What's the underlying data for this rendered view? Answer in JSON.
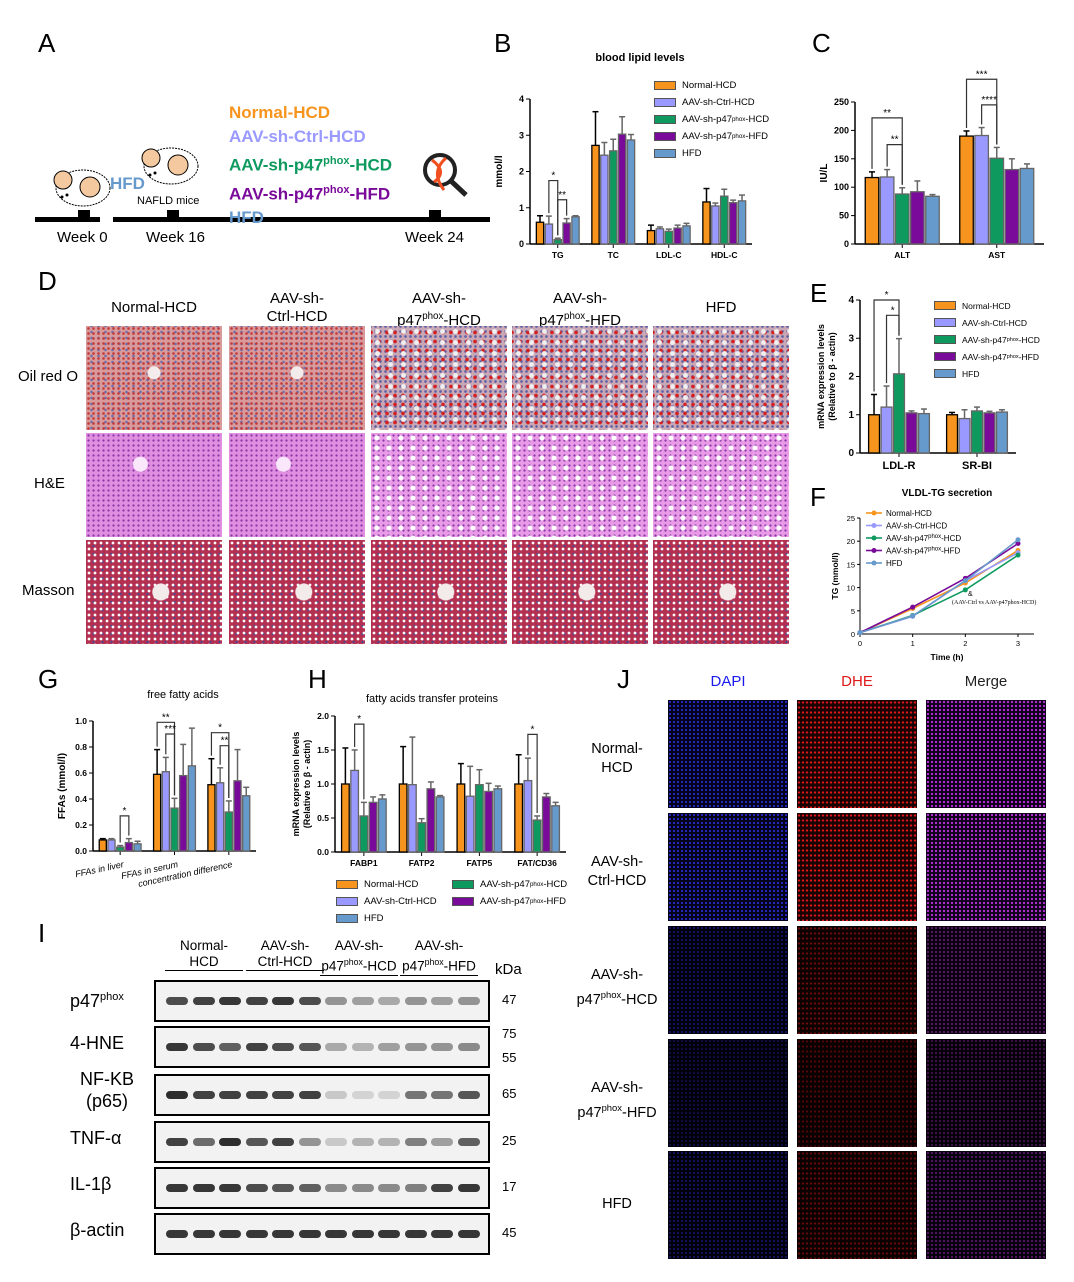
{
  "colors": {
    "normal_hcd": "#F7941D",
    "ctrl_hcd": "#9999FF",
    "p47_hcd": "#0E9A5E",
    "p47_hfd": "#7A0A9A",
    "hfd": "#6699CC"
  },
  "groups": [
    {
      "pre": "Normal-HCD",
      "sup": "",
      "post": ""
    },
    {
      "pre": "AAV-sh-Ctrl-HCD",
      "sup": "",
      "post": ""
    },
    {
      "pre": "AAV-sh-p47",
      "sup": "phox",
      "post": "-HCD"
    },
    {
      "pre": "AAV-sh-p47",
      "sup": "phox",
      "post": "-HFD"
    },
    {
      "pre": "HFD",
      "sup": "",
      "post": ""
    }
  ],
  "panel_labels": {
    "a": "A",
    "b": "B",
    "c": "C",
    "d": "D",
    "e": "E",
    "f": "F",
    "g": "G",
    "h": "H",
    "i": "I",
    "j": "J"
  },
  "panel_a": {
    "hfd_label": "HFD",
    "nafld_label": "NAFLD mice",
    "timeline": [
      "Week 0",
      "Week 16",
      "Week 24"
    ]
  },
  "panel_d": {
    "columns": [
      {
        "l1": "Normal-HCD",
        "l2": ""
      },
      {
        "l1": "AAV-sh-",
        "l2": "Ctrl-HCD"
      },
      {
        "l1": "AAV-sh-",
        "l2": "p47",
        "sup": "phox",
        "post": "-HCD"
      },
      {
        "l1": "AAV-sh-",
        "l2": "p47",
        "sup": "phox",
        "post": "-HFD"
      },
      {
        "l1": "HFD",
        "l2": ""
      }
    ],
    "rows": [
      "Oil red O",
      "H&E",
      "Masson"
    ]
  },
  "panel_i": {
    "groups": [
      {
        "l1": "Normal-",
        "l2": "HCD"
      },
      {
        "l1": "AAV-sh-",
        "l2": "Ctrl-HCD"
      },
      {
        "l1": "AAV-sh-",
        "l2": "p47",
        "sup": "phox",
        "post": "-HCD"
      },
      {
        "l1": "AAV-sh-",
        "l2": "p47",
        "sup": "phox",
        "post": "-HFD"
      }
    ],
    "unit": "kDa",
    "rows": [
      {
        "name": "p47",
        "sup": "phox",
        "kda": "47",
        "intensity": [
          0.8,
          0.85,
          0.9,
          0.85,
          0.9,
          0.8,
          0.45,
          0.4,
          0.35,
          0.45,
          0.4,
          0.45
        ]
      },
      {
        "name": "4-HNE",
        "kda": "75",
        "kda2": "55",
        "intensity": [
          0.9,
          0.8,
          0.7,
          0.85,
          0.8,
          0.75,
          0.35,
          0.3,
          0.4,
          0.45,
          0.45,
          0.5
        ]
      },
      {
        "name": "NF-KB",
        "name2": "(p65)",
        "kda": "65",
        "intensity": [
          0.95,
          0.85,
          0.85,
          0.85,
          0.85,
          0.85,
          0.2,
          0.15,
          0.15,
          0.6,
          0.6,
          0.75
        ]
      },
      {
        "name": "TNF-α",
        "kda": "25",
        "intensity": [
          0.85,
          0.65,
          0.95,
          0.75,
          0.85,
          0.45,
          0.2,
          0.3,
          0.3,
          0.55,
          0.4,
          0.7
        ]
      },
      {
        "name": "IL-1β",
        "kda": "17",
        "intensity": [
          0.9,
          0.9,
          0.9,
          0.8,
          0.75,
          0.7,
          0.5,
          0.5,
          0.5,
          0.55,
          0.85,
          0.9
        ]
      },
      {
        "name": "β-actin",
        "kda": "45",
        "intensity": [
          0.9,
          0.9,
          0.9,
          0.9,
          0.9,
          0.9,
          0.9,
          0.9,
          0.9,
          0.9,
          0.9,
          0.9
        ]
      }
    ]
  },
  "panel_j": {
    "columns": [
      "DAPI",
      "DHE",
      "Merge"
    ],
    "column_colors": [
      "#1a1aee",
      "#e01818",
      "#222222"
    ],
    "rows": [
      {
        "l1": "Normal-",
        "l2": "HCD"
      },
      {
        "l1": "AAV-sh-",
        "l2": "Ctrl-HCD"
      },
      {
        "l1": "AAV-sh-",
        "l2": "p47",
        "sup": "phox",
        "post": "-HCD"
      },
      {
        "l1": "AAV-sh-",
        "l2": "p47",
        "sup": "phox",
        "post": "-HFD"
      },
      {
        "l1": "HFD",
        "l2": ""
      }
    ],
    "intensity": [
      1,
      1,
      0.5,
      0.35,
      0.45
    ]
  },
  "chart_data": [
    {
      "id": "B",
      "type": "bar",
      "title": "blood lipid levels",
      "ylabel": "mmol/l",
      "ylim": [
        0,
        4
      ],
      "yticks": [
        0,
        1,
        2,
        3,
        4
      ],
      "categories": [
        "TG",
        "TC",
        "LDL-C",
        "HDL-C"
      ],
      "series": [
        {
          "name": "Normal-HCD",
          "values": [
            0.6,
            2.72,
            0.37,
            1.16
          ],
          "errors": [
            0.18,
            0.93,
            0.15,
            0.37
          ]
        },
        {
          "name": "AAV-sh-Ctrl-HCD",
          "values": [
            0.55,
            2.45,
            0.42,
            1.05
          ],
          "errors": [
            0.22,
            0.35,
            0.05,
            0.08
          ]
        },
        {
          "name": "AAV-sh-p47phox-HCD",
          "values": [
            0.12,
            2.57,
            0.35,
            1.32
          ],
          "errors": [
            0.04,
            0.32,
            0.06,
            0.19
          ]
        },
        {
          "name": "AAV-sh-p47phox-HFD",
          "values": [
            0.58,
            3.03,
            0.44,
            1.14
          ],
          "errors": [
            0.12,
            0.48,
            0.08,
            0.07
          ]
        },
        {
          "name": "HFD",
          "values": [
            0.75,
            2.87,
            0.5,
            1.19
          ],
          "errors": [
            0.03,
            0.15,
            0.07,
            0.16
          ]
        }
      ],
      "significance": [
        {
          "cat": 0,
          "a": 1,
          "b": 2,
          "y": 1.75,
          "label": "*"
        },
        {
          "cat": 0,
          "a": 2,
          "b": 3,
          "y": 1.22,
          "label": "**"
        }
      ],
      "legend": "top-right"
    },
    {
      "id": "C",
      "type": "bar",
      "title": "",
      "ylabel": "IU/L",
      "ylim": [
        0,
        250
      ],
      "yticks": [
        0,
        50,
        100,
        150,
        200,
        250
      ],
      "categories": [
        "ALT",
        "AST"
      ],
      "series": [
        {
          "name": "Normal-HCD",
          "values": [
            117,
            190
          ],
          "errors": [
            10,
            9
          ]
        },
        {
          "name": "AAV-sh-Ctrl-HCD",
          "values": [
            118,
            191
          ],
          "errors": [
            13,
            14
          ]
        },
        {
          "name": "AAV-sh-p47phox-HCD",
          "values": [
            88,
            151
          ],
          "errors": [
            11,
            19
          ]
        },
        {
          "name": "AAV-sh-p47phox-HFD",
          "values": [
            92,
            131
          ],
          "errors": [
            19,
            19
          ]
        },
        {
          "name": "HFD",
          "values": [
            84,
            133
          ],
          "errors": [
            3,
            8
          ]
        }
      ],
      "significance": [
        {
          "cat": 0,
          "a": 0,
          "b": 2,
          "y": 222,
          "label": "**"
        },
        {
          "cat": 0,
          "a": 1,
          "b": 2,
          "y": 175,
          "label": "**"
        },
        {
          "cat": 1,
          "a": 0,
          "b": 2,
          "y": 290,
          "label": "***"
        },
        {
          "cat": 1,
          "a": 1,
          "b": 2,
          "y": 245,
          "label": "****"
        }
      ]
    },
    {
      "id": "E",
      "type": "bar",
      "title": "",
      "ylabel": "mRNA expression levels",
      "ylabel2": "(Relative to β - actin)",
      "ylim": [
        0,
        4
      ],
      "yticks": [
        0,
        1,
        2,
        3,
        4
      ],
      "categories": [
        "LDL-R",
        "SR-BI"
      ],
      "series": [
        {
          "name": "Normal-HCD",
          "values": [
            1.0,
            1.0
          ],
          "errors": [
            0.53,
            0.06
          ]
        },
        {
          "name": "AAV-sh-Ctrl-HCD",
          "values": [
            1.2,
            0.9
          ],
          "errors": [
            0.55,
            0.23
          ]
        },
        {
          "name": "AAV-sh-p47phox-HCD",
          "values": [
            2.07,
            1.1
          ],
          "errors": [
            0.92,
            0.1
          ]
        },
        {
          "name": "AAV-sh-p47phox-HFD",
          "values": [
            1.05,
            1.05
          ],
          "errors": [
            0.05,
            0.04
          ]
        },
        {
          "name": "HFD",
          "values": [
            1.03,
            1.07
          ],
          "errors": [
            0.12,
            0.06
          ]
        }
      ],
      "significance": [
        {
          "cat": 0,
          "a": 0,
          "b": 2,
          "y": 4.0,
          "label": "*"
        },
        {
          "cat": 0,
          "a": 1,
          "b": 2,
          "y": 3.6,
          "label": "*"
        }
      ],
      "legend": "top-right"
    },
    {
      "id": "F",
      "type": "line",
      "title": "VLDL-TG secretion",
      "xlabel": "Time (h)",
      "ylabel": "TG (mmol/l)",
      "xlim": [
        0,
        3
      ],
      "ylim": [
        0,
        25
      ],
      "xticks": [
        0,
        1,
        2,
        3
      ],
      "yticks": [
        0,
        5,
        10,
        15,
        20,
        25
      ],
      "x": [
        0,
        1,
        2,
        3
      ],
      "series": [
        {
          "name": "Normal-HCD",
          "marker": "square",
          "values": [
            0.3,
            5.5,
            11,
            18
          ]
        },
        {
          "name": "AAV-sh-Ctrl-HCD",
          "marker": "triangle",
          "values": [
            0.3,
            3.8,
            11.5,
            17.5
          ]
        },
        {
          "name": "AAV-sh-p47phox-HCD",
          "marker": "circle",
          "values": [
            0.3,
            4,
            9.5,
            17
          ]
        },
        {
          "name": "AAV-sh-p47phox-HFD",
          "marker": "down-triangle",
          "values": [
            0.3,
            5.8,
            12,
            19.5
          ]
        },
        {
          "name": "HFD",
          "marker": "plus",
          "values": [
            0.3,
            3.9,
            11.5,
            20.3
          ]
        }
      ],
      "annotation": "&",
      "annotation2": "(AAV-Ctrl vs AAV-p47phox-HCD)",
      "legend": "top-left"
    },
    {
      "id": "G",
      "type": "bar",
      "title": "free fatty acids",
      "ylabel": "FFAs (mmol/l)",
      "ylim": [
        0,
        1
      ],
      "yticks": [
        0,
        0.2,
        0.4,
        0.6,
        0.8,
        1.0
      ],
      "categories": [
        "FFAs in liver",
        "FFAs in serum",
        "concentration difference"
      ],
      "series": [
        {
          "name": "Normal-HCD",
          "values": [
            0.085,
            0.59,
            0.51
          ],
          "errors": [
            0.01,
            0.19,
            0.2
          ]
        },
        {
          "name": "AAV-sh-Ctrl-HCD",
          "values": [
            0.085,
            0.61,
            0.525
          ],
          "errors": [
            0.01,
            0.11,
            0.115
          ]
        },
        {
          "name": "AAV-sh-p47phox-HCD",
          "values": [
            0.03,
            0.33,
            0.3
          ],
          "errors": [
            0.012,
            0.075,
            0.085
          ]
        },
        {
          "name": "AAV-sh-p47phox-HFD",
          "values": [
            0.065,
            0.58,
            0.54
          ],
          "errors": [
            0.03,
            0.24,
            0.24
          ]
        },
        {
          "name": "HFD",
          "values": [
            0.055,
            0.655,
            0.425
          ],
          "errors": [
            0.02,
            0.29,
            0.065
          ]
        }
      ],
      "significance": [
        {
          "cat": 0,
          "a": 2,
          "b": 3,
          "y": 0.27,
          "label": "*"
        },
        {
          "cat": 1,
          "a": 0,
          "b": 2,
          "y": 0.99,
          "label": "**"
        },
        {
          "cat": 1,
          "a": 1,
          "b": 2,
          "y": 0.9,
          "label": "***"
        },
        {
          "cat": 2,
          "a": 0,
          "b": 2,
          "y": 0.91,
          "label": "*"
        },
        {
          "cat": 2,
          "a": 1,
          "b": 2,
          "y": 0.81,
          "label": "**"
        }
      ]
    },
    {
      "id": "H",
      "type": "bar",
      "title": "fatty acids transfer proteins",
      "ylabel": "mRNA expression levels",
      "ylabel2": "(Relative to β - actin)",
      "ylim": [
        0,
        2
      ],
      "yticks": [
        0,
        0.5,
        1.0,
        1.5,
        2.0
      ],
      "categories": [
        "FABP1",
        "FATP2",
        "FATP5",
        "FAT/CD36"
      ],
      "series": [
        {
          "name": "Normal-HCD",
          "values": [
            1.0,
            1.0,
            1.0,
            1.0
          ],
          "errors": [
            0.53,
            0.55,
            0.3,
            0.43
          ]
        },
        {
          "name": "AAV-sh-Ctrl-HCD",
          "values": [
            1.2,
            0.99,
            0.82,
            1.05
          ],
          "errors": [
            0.3,
            0.7,
            0.44,
            0.33
          ]
        },
        {
          "name": "AAV-sh-p47phox-HCD",
          "values": [
            0.53,
            0.43,
            0.99,
            0.47
          ],
          "errors": [
            0.2,
            0.06,
            0.22,
            0.06
          ]
        },
        {
          "name": "AAV-sh-p47phox-HFD",
          "values": [
            0.73,
            0.93,
            0.89,
            0.81
          ],
          "errors": [
            0.08,
            0.1,
            0.12,
            0.05
          ]
        },
        {
          "name": "HFD",
          "values": [
            0.78,
            0.81,
            0.93,
            0.68
          ],
          "errors": [
            0.06,
            0.02,
            0.04,
            0.05
          ]
        }
      ],
      "significance": [
        {
          "cat": 0,
          "a": 1,
          "b": 2,
          "y": 1.88,
          "label": "*"
        },
        {
          "cat": 3,
          "a": 1,
          "b": 2,
          "y": 1.73,
          "label": "*"
        }
      ],
      "legend": "bottom"
    }
  ]
}
